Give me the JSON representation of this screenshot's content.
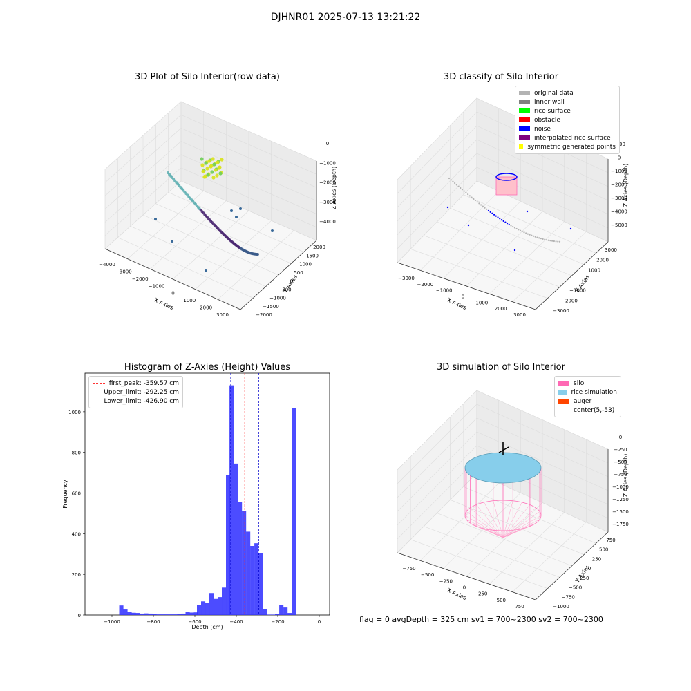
{
  "figure": {
    "suptitle": "DJHNR01 2025-07-13 13:21:22"
  },
  "chart_data": [
    {
      "type": "scatter",
      "title": "3D Plot of Silo Interior(row data)",
      "xlabel": "X Axies",
      "ylabel": "Y Axies",
      "zlabel": "Z Axies (Depth)",
      "x_ticks": [
        "−4000",
        "−3000",
        "−2000",
        "−1000",
        "0",
        "1000",
        "2000",
        "3000"
      ],
      "y_ticks": [
        "2000",
        "1500",
        "1000",
        "500",
        "0",
        "−500",
        "−1000",
        "−1500",
        "−2000"
      ],
      "z_ticks": [
        "0",
        "−1000",
        "−2000",
        "−3000",
        "−4000"
      ],
      "colormap": "viridis",
      "grid": true
    },
    {
      "type": "scatter",
      "title": "3D classify of Silo Interior",
      "xlabel": "X Axies",
      "ylabel": "Y Axies",
      "zlabel": "Z Axies (Depth)",
      "x_ticks": [
        "−3000",
        "−2000",
        "−1000",
        "0",
        "1000",
        "2000",
        "3000"
      ],
      "y_ticks": [
        "3000",
        "2000",
        "1000",
        "0",
        "−1000",
        "−2000",
        "−3000"
      ],
      "z_ticks": [
        "1000",
        "0",
        "−1000",
        "−2000",
        "−3000",
        "−4000",
        "−5000"
      ],
      "legend_position": "top-right",
      "legend": [
        {
          "label": "original data",
          "color": "#b3b3b3"
        },
        {
          "label": "inner wall",
          "color": "#808080"
        },
        {
          "label": "rice surface",
          "color": "#00ff00"
        },
        {
          "label": "obstacle",
          "color": "#ff0000"
        },
        {
          "label": "noise",
          "color": "#0000ff"
        },
        {
          "label": "interpolated rice surface",
          "color": "#800080"
        },
        {
          "label": "symmetric generated points",
          "color": "#ffff00"
        }
      ],
      "grid": true
    },
    {
      "type": "bar",
      "title": "Histogram of Z-Axies (Height) Values",
      "xlabel": "Depth (cm)",
      "ylabel": "Frequency",
      "xlim": [
        -1130,
        50
      ],
      "ylim": [
        0,
        1190
      ],
      "x_ticks": [
        "−1000",
        "−800",
        "−600",
        "−400",
        "−200",
        "0"
      ],
      "y_ticks": [
        "0",
        "200",
        "400",
        "600",
        "800",
        "1000"
      ],
      "x_tick_values": [
        -1000,
        -800,
        -600,
        -400,
        -200,
        0
      ],
      "y_tick_values": [
        0,
        200,
        400,
        600,
        800,
        1000
      ],
      "bin_width": 20.3,
      "bins": [
        [
          -965,
          47
        ],
        [
          -945,
          27
        ],
        [
          -925,
          17
        ],
        [
          -905,
          11
        ],
        [
          -885,
          10
        ],
        [
          -865,
          7
        ],
        [
          -845,
          8
        ],
        [
          -825,
          7
        ],
        [
          -805,
          5
        ],
        [
          -785,
          3
        ],
        [
          -765,
          3
        ],
        [
          -745,
          3
        ],
        [
          -725,
          3
        ],
        [
          -705,
          3
        ],
        [
          -685,
          5
        ],
        [
          -665,
          7
        ],
        [
          -645,
          14
        ],
        [
          -625,
          12
        ],
        [
          -605,
          13
        ],
        [
          -590,
          48
        ],
        [
          -570,
          67
        ],
        [
          -550,
          59
        ],
        [
          -530,
          108
        ],
        [
          -510,
          79
        ],
        [
          -490,
          88
        ],
        [
          -470,
          135
        ],
        [
          -450,
          690
        ],
        [
          -433,
          1130
        ],
        [
          -413,
          745
        ],
        [
          -393,
          555
        ],
        [
          -373,
          510
        ],
        [
          -353,
          410
        ],
        [
          -333,
          340
        ],
        [
          -313,
          353
        ],
        [
          -293,
          305
        ],
        [
          -273,
          30
        ],
        [
          -253,
          2
        ],
        [
          -233,
          2
        ],
        [
          -213,
          5
        ],
        [
          -193,
          50
        ],
        [
          -173,
          37
        ],
        [
          -153,
          10
        ],
        [
          -133,
          1020
        ]
      ],
      "bar_color": "#3333ff",
      "vlines": [
        {
          "label": "first_peak: -359.57 cm",
          "value": -359.57,
          "color": "#ff3333"
        },
        {
          "label": "Upper_limit: -292.25 cm",
          "value": -292.25,
          "color": "#0000cc"
        },
        {
          "label": "Lower_limit: -426.90 cm",
          "value": -426.9,
          "color": "#0000cc"
        }
      ],
      "legend_position": "top-left",
      "grid": false
    },
    {
      "type": "scatter",
      "title": "3D simulation of Silo Interior",
      "xlabel": "X Axies",
      "ylabel": "Y Axies",
      "zlabel": "Z Axies (Depth)",
      "x_ticks": [
        "−750",
        "−500",
        "−250",
        "0",
        "250",
        "500",
        "750"
      ],
      "y_ticks": [
        "750",
        "500",
        "250",
        "0",
        "−250",
        "−500",
        "−750",
        "−1000"
      ],
      "z_ticks": [
        "0",
        "−250",
        "−500",
        "−750",
        "−1000",
        "−1250",
        "−1500",
        "−1750"
      ],
      "legend_position": "top-right",
      "legend": [
        {
          "label": "silo",
          "color": "#ff69b4"
        },
        {
          "label": "rice simulation",
          "color": "#87ceeb"
        },
        {
          "label": "auger",
          "color": "#ff4500"
        },
        {
          "label": "center(5,-53)",
          "color": ""
        }
      ],
      "grid": true
    }
  ],
  "status": {
    "text": "flag = 0     avgDepth = 325 cm  sv1 = 700~2300  sv2 = 700~2300"
  }
}
